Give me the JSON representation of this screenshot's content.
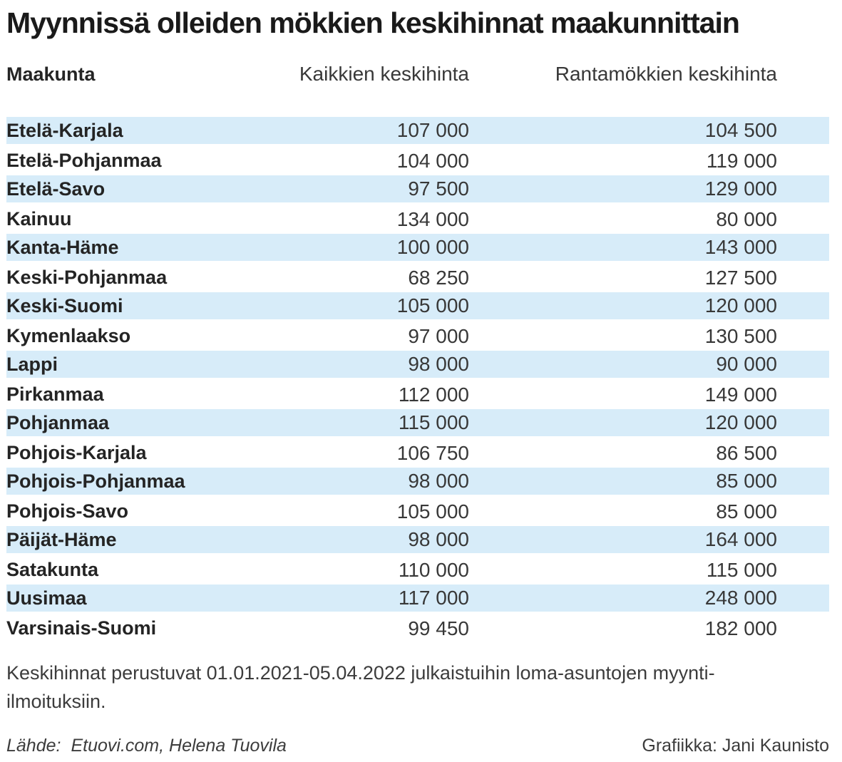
{
  "title": "Myynnissä olleiden mökkien keskihinnat maakunnittain",
  "columns": [
    "Maakunta",
    "Kaikkien keskihinta",
    "Rantamökkien keskihinta"
  ],
  "rows": [
    {
      "region": "Etelä-Karjala",
      "all_display": "107 000",
      "waterfront_display": "104 500"
    },
    {
      "region": "Etelä-Pohjanmaa",
      "all_display": "104 000",
      "waterfront_display": "119 000"
    },
    {
      "region": "Etelä-Savo",
      "all_display": "97 500",
      "waterfront_display": "129 000"
    },
    {
      "region": "Kainuu",
      "all_display": "134 000",
      "waterfront_display": "80 000"
    },
    {
      "region": "Kanta-Häme",
      "all_display": "100 000",
      "waterfront_display": "143 000"
    },
    {
      "region": "Keski-Pohjanmaa",
      "all_display": "68 250",
      "waterfront_display": "127 500"
    },
    {
      "region": "Keski-Suomi",
      "all_display": "105 000",
      "waterfront_display": "120 000"
    },
    {
      "region": "Kymenlaakso",
      "all_display": "97 000",
      "waterfront_display": "130 500"
    },
    {
      "region": "Lappi",
      "all_display": "98 000",
      "waterfront_display": "90 000"
    },
    {
      "region": "Pirkanmaa",
      "all_display": "112 000",
      "waterfront_display": "149 000"
    },
    {
      "region": "Pohjanmaa",
      "all_display": "115 000",
      "waterfront_display": "120 000"
    },
    {
      "region": "Pohjois-Karjala",
      "all_display": "106 750",
      "waterfront_display": "86 500"
    },
    {
      "region": "Pohjois-Pohjanmaa",
      "all_display": "98 000",
      "waterfront_display": "85 000"
    },
    {
      "region": "Pohjois-Savo",
      "all_display": "105 000",
      "waterfront_display": "85 000"
    },
    {
      "region": "Päijät-Häme",
      "all_display": "98 000",
      "waterfront_display": "164 000"
    },
    {
      "region": "Satakunta",
      "all_display": "110 000",
      "waterfront_display": "115 000"
    },
    {
      "region": "Uusimaa",
      "all_display": "117 000",
      "waterfront_display": "248 000"
    },
    {
      "region": "Varsinais-Suomi",
      "all_display": "99 450",
      "waterfront_display": "182 000"
    }
  ],
  "footnote": "Keskihinnat perustuvat 01.01.2021-05.04.2022 julkaistuihin loma-asuntojen myynti-ilmoituksiin.",
  "source_label": "Lähde:",
  "source_value": "Etuovi.com, Helena Tuovila",
  "credit": "Grafiikka: Jani Kaunisto",
  "colors": {
    "stripe": "#d7ecf9",
    "title_text": "#1a1a1a",
    "region_text": "#242424",
    "number_text": "#383838"
  },
  "chart_data": {
    "type": "table",
    "title": "Myynnissä olleiden mökkien keskihinnat maakunnittain",
    "columns": [
      "Maakunta",
      "Kaikkien keskihinta",
      "Rantamökkien keskihinta"
    ],
    "rows": [
      [
        "Etelä-Karjala",
        107000,
        104500
      ],
      [
        "Etelä-Pohjanmaa",
        104000,
        119000
      ],
      [
        "Etelä-Savo",
        97500,
        129000
      ],
      [
        "Kainuu",
        134000,
        80000
      ],
      [
        "Kanta-Häme",
        100000,
        143000
      ],
      [
        "Keski-Pohjanmaa",
        68250,
        127500
      ],
      [
        "Keski-Suomi",
        105000,
        120000
      ],
      [
        "Kymenlaakso",
        97000,
        130500
      ],
      [
        "Lappi",
        98000,
        90000
      ],
      [
        "Pirkanmaa",
        112000,
        149000
      ],
      [
        "Pohjanmaa",
        115000,
        120000
      ],
      [
        "Pohjois-Karjala",
        106750,
        86500
      ],
      [
        "Pohjois-Pohjanmaa",
        98000,
        85000
      ],
      [
        "Pohjois-Savo",
        105000,
        85000
      ],
      [
        "Päijät-Häme",
        98000,
        164000
      ],
      [
        "Satakunta",
        110000,
        115000
      ],
      [
        "Uusimaa",
        117000,
        248000
      ],
      [
        "Varsinais-Suomi",
        99450,
        182000
      ]
    ],
    "notes": "Keskihinnat perustuvat 01.01.2021-05.04.2022 julkaistuihin loma-asuntojen myynti-ilmoituksiin.",
    "source": "Lähde: Etuovi.com, Helena Tuovila",
    "credit": "Grafiikka: Jani Kaunisto",
    "layout": {
      "striped_rows": "odd",
      "stripe_color": "#d7ecf9",
      "value_alignment": "right"
    }
  }
}
